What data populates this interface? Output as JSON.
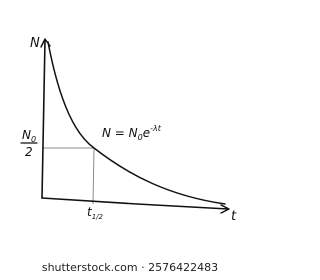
{
  "axes": {
    "y_label": "N",
    "x_label": "t"
  },
  "half_value": {
    "numerator": "N",
    "numerator_subscript": "0",
    "denominator": "2"
  },
  "equation": {
    "lhs": "N = N",
    "subscript": "0",
    "base": "e",
    "exponent": "-λt"
  },
  "half_life": {
    "symbol": "t",
    "subscript": "1/2"
  },
  "watermark": {
    "site": "shutterstock.com",
    "separator": "·",
    "id": "2576422483"
  }
}
